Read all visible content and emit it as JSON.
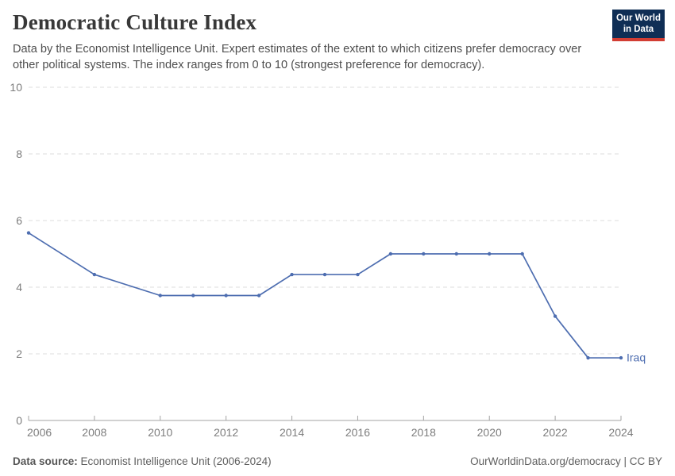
{
  "header": {
    "title": "Democratic Culture Index",
    "subtitle": "Data by the Economist Intelligence Unit. Expert estimates of the extent to which citizens prefer democracy over other political systems. The index ranges from 0 to 10 (strongest preference for democracy).",
    "logo": {
      "line1": "Our World",
      "line2": "in Data"
    }
  },
  "chart_data": {
    "type": "line",
    "title": "Democratic Culture Index",
    "x": [
      2006,
      2008,
      2010,
      2011,
      2012,
      2013,
      2014,
      2015,
      2016,
      2017,
      2018,
      2019,
      2020,
      2021,
      2022,
      2023,
      2024
    ],
    "series": [
      {
        "name": "Iraq",
        "values": [
          5.63,
          4.38,
          3.75,
          3.75,
          3.75,
          3.75,
          4.38,
          4.38,
          4.38,
          5.0,
          5.0,
          5.0,
          5.0,
          5.0,
          3.13,
          1.88,
          1.88
        ]
      }
    ],
    "entity_label": "Iraq",
    "xlabel": "",
    "ylabel": "",
    "ylim": [
      0,
      10
    ],
    "yticks": [
      0,
      2,
      4,
      6,
      8,
      10
    ],
    "xticks": [
      2006,
      2008,
      2010,
      2012,
      2014,
      2016,
      2018,
      2020,
      2022,
      2024
    ],
    "grid": "horizontal-dashed",
    "legend_position": "end-of-line"
  },
  "footer": {
    "source_label": "Data source:",
    "source_text": " Economist Intelligence Unit (2006-2024)",
    "credit": "OurWorldinData.org/democracy | CC BY"
  },
  "colors": {
    "line": "#4d6db0",
    "grid": "#dddddd",
    "axis": "#a3a3a3",
    "tick_text": "#7d7d7d",
    "logo_bg": "#0f2e55",
    "logo_stripe": "#d23d33"
  }
}
